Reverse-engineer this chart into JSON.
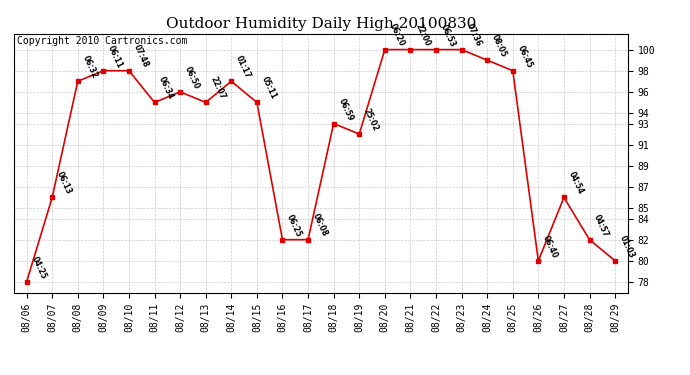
{
  "title": "Outdoor Humidity Daily High 20100830",
  "copyright": "Copyright 2010 Cartronics.com",
  "x_labels": [
    "08/06",
    "08/07",
    "08/08",
    "08/09",
    "08/10",
    "08/11",
    "08/12",
    "08/13",
    "08/14",
    "08/15",
    "08/16",
    "08/17",
    "08/18",
    "08/19",
    "08/20",
    "08/21",
    "08/22",
    "08/23",
    "08/24",
    "08/25",
    "08/26",
    "08/27",
    "08/28",
    "08/29"
  ],
  "points": [
    [
      0,
      78,
      "04:25"
    ],
    [
      1,
      86,
      "06:13"
    ],
    [
      2,
      97,
      "06:32"
    ],
    [
      3,
      98,
      "06:11"
    ],
    [
      4,
      98,
      "07:48"
    ],
    [
      5,
      95,
      "06:34"
    ],
    [
      6,
      96,
      "06:50"
    ],
    [
      7,
      95,
      "22:07"
    ],
    [
      8,
      97,
      "01:17"
    ],
    [
      9,
      95,
      "05:11"
    ],
    [
      10,
      82,
      "06:25"
    ],
    [
      11,
      82,
      "06:08"
    ],
    [
      12,
      93,
      "06:59"
    ],
    [
      13,
      92,
      "25:02"
    ],
    [
      14,
      100,
      "06:20"
    ],
    [
      15,
      100,
      "22:00"
    ],
    [
      16,
      100,
      "06:53"
    ],
    [
      17,
      100,
      "07:36"
    ],
    [
      18,
      99,
      "08:05"
    ],
    [
      19,
      98,
      "06:45"
    ],
    [
      20,
      80,
      "06:40"
    ],
    [
      21,
      86,
      "04:54"
    ],
    [
      22,
      82,
      "04:57"
    ],
    [
      23,
      80,
      "01:03"
    ]
  ],
  "yticks": [
    78,
    80,
    82,
    84,
    85,
    87,
    89,
    91,
    93,
    94,
    96,
    98,
    100
  ],
  "line_color": "#dd0000",
  "background_color": "#ffffff",
  "grid_color": "#cccccc",
  "title_fontsize": 11,
  "tick_fontsize": 7,
  "copyright_fontsize": 7
}
